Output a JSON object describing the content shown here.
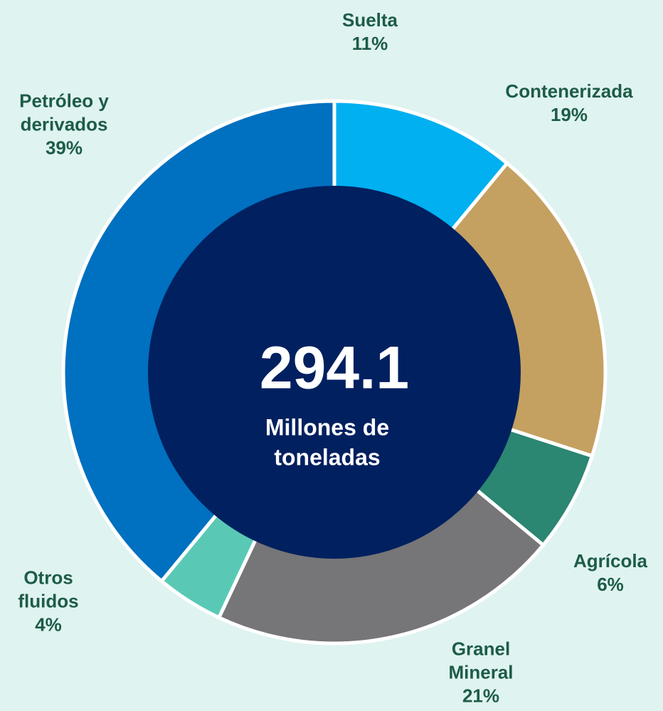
{
  "chart_data": {
    "type": "donut",
    "categories": [
      "Suelta",
      "Contenerizada",
      "Agrícola",
      "Granel Mineral",
      "Otros fluidos",
      "Petróleo y derivados"
    ],
    "values": [
      11,
      19,
      6,
      21,
      4,
      39
    ],
    "value_labels": [
      "11%",
      "19%",
      "6%",
      "21%",
      "4%",
      "39%"
    ],
    "colors": [
      "#00b0f0",
      "#c4a061",
      "#2b8672",
      "#767577",
      "#59c9b5",
      "#0070c0"
    ],
    "center_value": "294.1",
    "center_label": "Millones de toneladas"
  }
}
